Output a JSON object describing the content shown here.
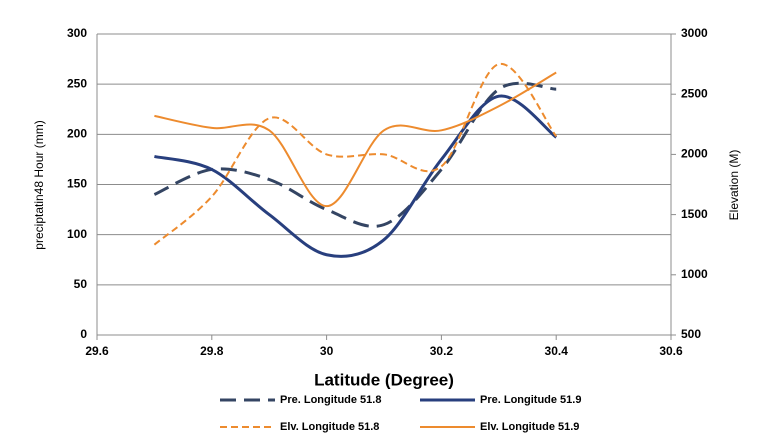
{
  "chart_data": {
    "type": "line",
    "x_label": "Latitude (Degree)",
    "y_label": "preciptatin48 Hour (mm)",
    "y2_label": "Elevation (M)",
    "xlim": [
      29.6,
      30.6
    ],
    "xticks": [
      29.6,
      29.8,
      30,
      30.2,
      30.4,
      30.6
    ],
    "ylim": [
      0,
      300
    ],
    "yticks": [
      0,
      50,
      100,
      150,
      200,
      250,
      300
    ],
    "y2lim": [
      500,
      3000
    ],
    "y2ticks": [
      500,
      1000,
      1500,
      2000,
      2500,
      3000
    ],
    "grid": true,
    "smooth": true,
    "legend": "bottom",
    "x": [
      29.7,
      29.8,
      29.9,
      30.0,
      30.1,
      30.2,
      30.3,
      30.4
    ],
    "series": [
      {
        "name": "Pre. Longitude 51.8",
        "color": "#344563",
        "dashed": true,
        "values": [
          140,
          165,
          155,
          125,
          110,
          165,
          245,
          245
        ]
      },
      {
        "name": "Pre. Longitude 51.9",
        "color": "#283f7e",
        "dashed": false,
        "values": [
          178,
          165,
          120,
          80,
          95,
          175,
          238,
          197
        ]
      },
      {
        "name": "Elv. Longitude 51.8",
        "color": "#ed8b2e",
        "dashed": true,
        "axis": "y2",
        "values": [
          1250,
          1650,
          2300,
          2000,
          2000,
          1900,
          2750,
          2150
        ]
      },
      {
        "name": "Elv. Longitude 51.9",
        "color": "#ed8b2e",
        "dashed": false,
        "axis": "y2",
        "values": [
          2320,
          2220,
          2200,
          1570,
          2200,
          2200,
          2400,
          2680
        ]
      }
    ]
  }
}
